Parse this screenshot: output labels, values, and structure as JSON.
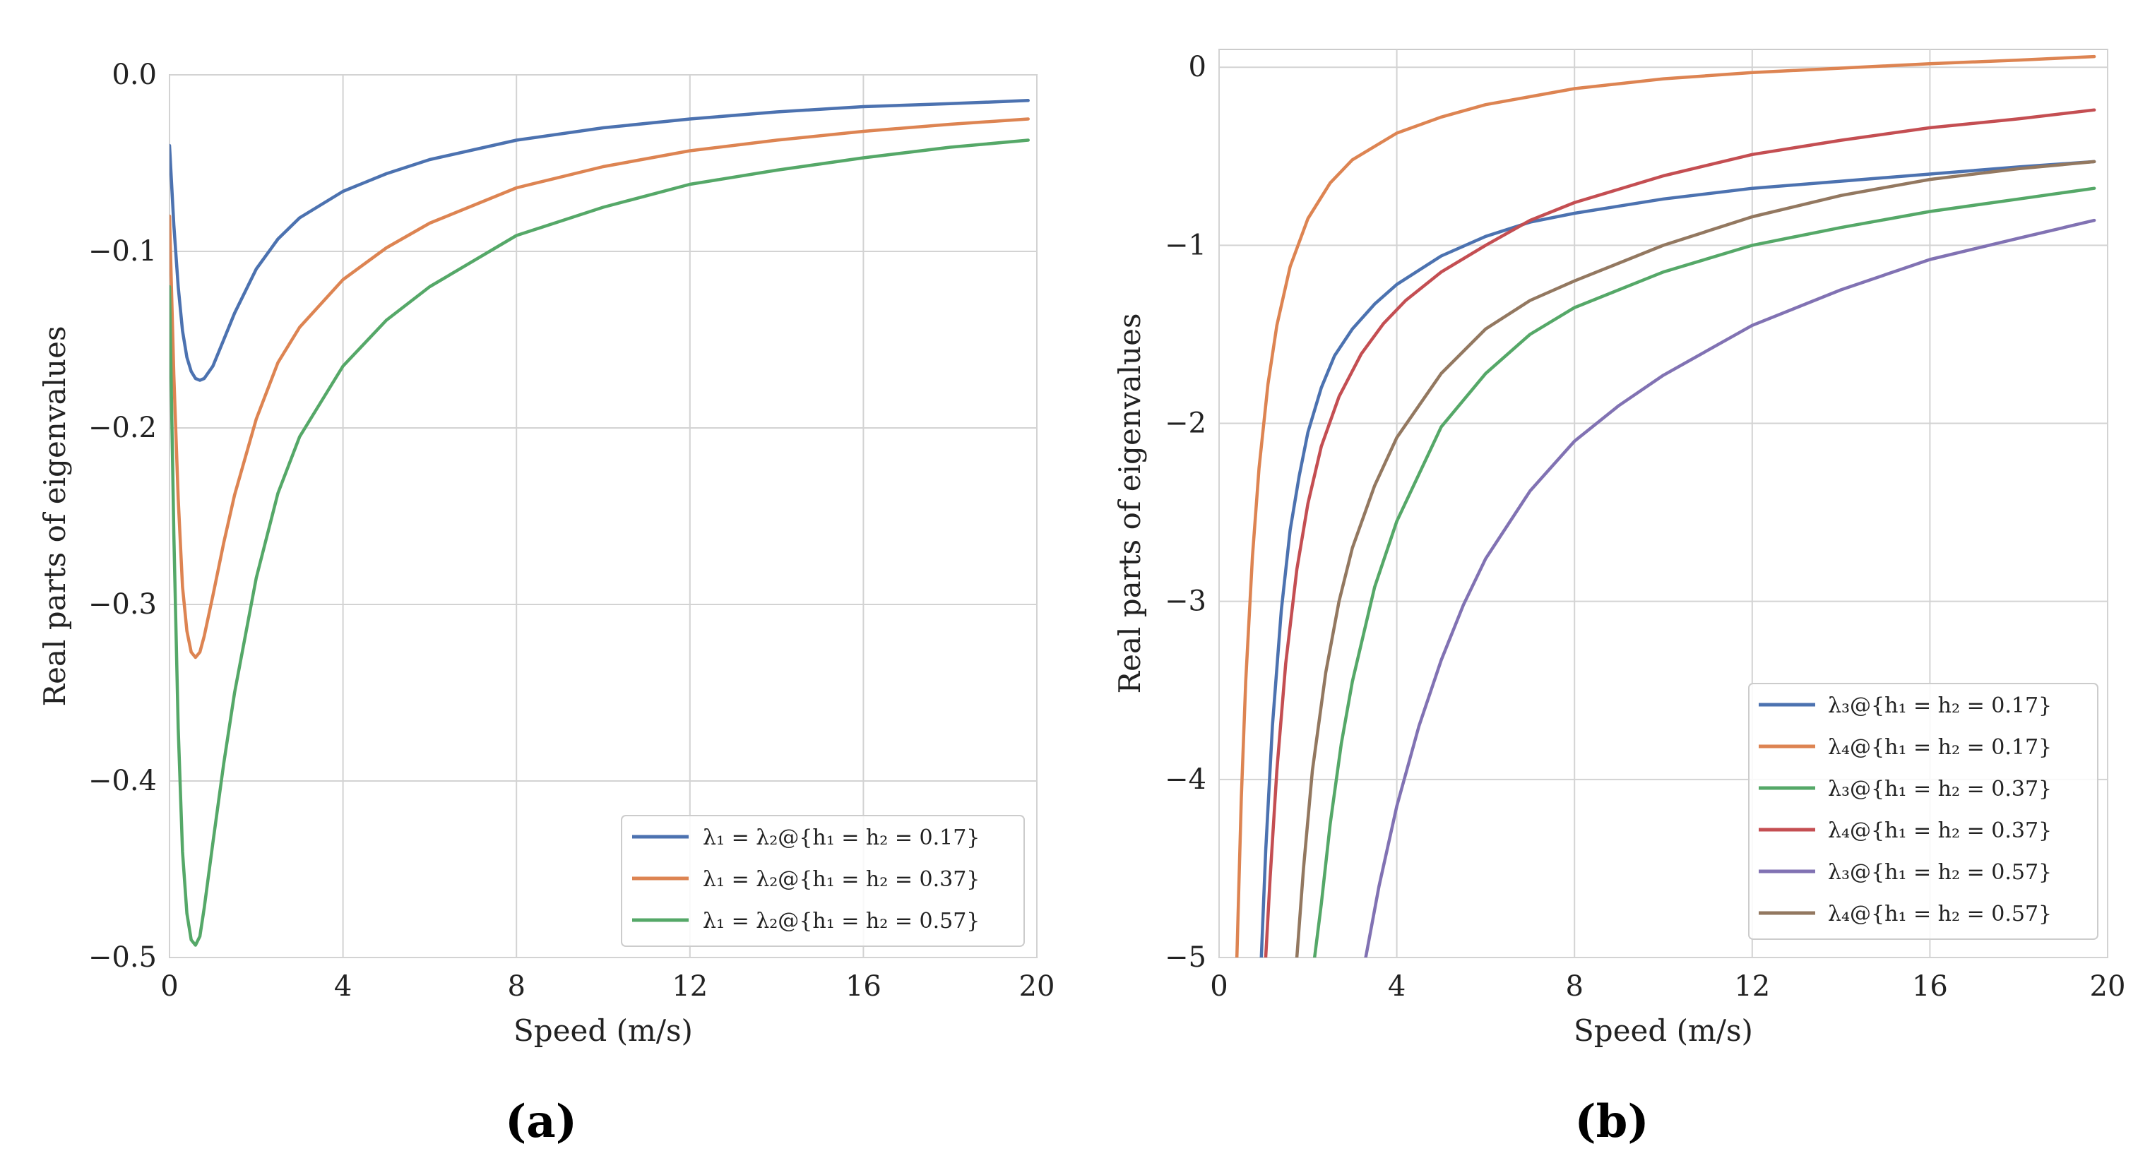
{
  "chart_data": [
    {
      "type": "line",
      "panel_label": "(a)",
      "xlabel": "Speed (m/s)",
      "ylabel": "Real parts of eigenvalues",
      "xlim": [
        0,
        20
      ],
      "ylim": [
        -0.5,
        0.0
      ],
      "xticks": [
        0,
        4,
        8,
        12,
        16,
        20
      ],
      "xtick_labels": [
        "0",
        "4",
        "8",
        "12",
        "16",
        "20"
      ],
      "yticks": [
        0.0,
        -0.1,
        -0.2,
        -0.3,
        -0.4,
        -0.5
      ],
      "ytick_labels": [
        "0.0",
        "−0.1",
        "−0.2",
        "−0.3",
        "−0.4",
        "−0.5"
      ],
      "grid": true,
      "legend_position": "lower-right",
      "series": [
        {
          "name": "λ₁ = λ₂@{h₁ = h₂ = 0.17}",
          "color": "#4c72b0",
          "x": [
            0,
            0.1,
            0.2,
            0.3,
            0.4,
            0.5,
            0.6,
            0.7,
            0.8,
            1.0,
            1.25,
            1.5,
            2,
            2.5,
            3,
            4,
            5,
            6,
            8,
            10,
            12,
            14,
            16,
            18,
            19.8
          ],
          "y": [
            -0.04,
            -0.085,
            -0.12,
            -0.145,
            -0.16,
            -0.168,
            -0.172,
            -0.173,
            -0.172,
            -0.165,
            -0.15,
            -0.135,
            -0.11,
            -0.093,
            -0.081,
            -0.066,
            -0.056,
            -0.048,
            -0.037,
            -0.03,
            -0.025,
            -0.021,
            -0.018,
            -0.0163,
            -0.0145
          ]
        },
        {
          "name": "λ₁ = λ₂@{h₁ = h₂ = 0.37}",
          "color": "#dd8452",
          "x": [
            0,
            0.1,
            0.2,
            0.3,
            0.4,
            0.5,
            0.6,
            0.7,
            0.8,
            1.0,
            1.25,
            1.5,
            2,
            2.5,
            3,
            4,
            5,
            6,
            8,
            10,
            12,
            14,
            16,
            18,
            19.8
          ],
          "y": [
            -0.08,
            -0.17,
            -0.24,
            -0.29,
            -0.315,
            -0.327,
            -0.33,
            -0.327,
            -0.318,
            -0.295,
            -0.265,
            -0.238,
            -0.195,
            -0.163,
            -0.143,
            -0.116,
            -0.098,
            -0.084,
            -0.064,
            -0.052,
            -0.043,
            -0.037,
            -0.032,
            -0.028,
            -0.025
          ]
        },
        {
          "name": "λ₁ = λ₂@{h₁ = h₂ = 0.57}",
          "color": "#55a868",
          "x": [
            0,
            0.1,
            0.2,
            0.3,
            0.4,
            0.5,
            0.6,
            0.7,
            0.8,
            1.0,
            1.25,
            1.5,
            2,
            2.5,
            3,
            4,
            5,
            6,
            8,
            10,
            12,
            14,
            16,
            18,
            19.8
          ],
          "y": [
            -0.12,
            -0.26,
            -0.37,
            -0.44,
            -0.475,
            -0.49,
            -0.493,
            -0.488,
            -0.472,
            -0.435,
            -0.39,
            -0.35,
            -0.285,
            -0.237,
            -0.205,
            -0.165,
            -0.139,
            -0.12,
            -0.091,
            -0.075,
            -0.062,
            -0.054,
            -0.047,
            -0.041,
            -0.037
          ]
        }
      ]
    },
    {
      "type": "line",
      "panel_label": "(b)",
      "xlabel": "Speed (m/s)",
      "ylabel": "Real parts of eigenvalues",
      "xlim": [
        0,
        20
      ],
      "ylim": [
        -5,
        0.1
      ],
      "xticks": [
        0,
        4,
        8,
        12,
        16,
        20
      ],
      "xtick_labels": [
        "0",
        "4",
        "8",
        "12",
        "16",
        "20"
      ],
      "yticks": [
        0,
        -1,
        -2,
        -3,
        -4,
        -5
      ],
      "ytick_labels": [
        "0",
        "−1",
        "−2",
        "−3",
        "−4",
        "−5"
      ],
      "grid": true,
      "legend_position": "lower-right",
      "series": [
        {
          "name": "λ₃@{h₁ = h₂ = 0.17}",
          "color": "#4c72b0",
          "x": [
            0.95,
            1.05,
            1.2,
            1.4,
            1.6,
            1.8,
            2.0,
            2.3,
            2.6,
            3,
            3.5,
            4,
            5,
            6,
            7,
            8,
            10,
            12,
            14,
            16,
            18,
            19.7
          ],
          "y": [
            -5,
            -4.4,
            -3.7,
            -3.05,
            -2.6,
            -2.3,
            -2.05,
            -1.8,
            -1.62,
            -1.47,
            -1.33,
            -1.22,
            -1.06,
            -0.95,
            -0.87,
            -0.82,
            -0.74,
            -0.68,
            -0.64,
            -0.6,
            -0.56,
            -0.53
          ]
        },
        {
          "name": "λ₄@{h₁ = h₂ = 0.17}",
          "color": "#dd8452",
          "x": [
            0.4,
            0.5,
            0.6,
            0.75,
            0.9,
            1.1,
            1.3,
            1.6,
            2,
            2.5,
            3,
            4,
            5,
            6,
            8,
            10,
            12,
            14,
            16,
            18,
            19.7
          ],
          "y": [
            -5,
            -4.1,
            -3.45,
            -2.75,
            -2.25,
            -1.78,
            -1.45,
            -1.12,
            -0.85,
            -0.65,
            -0.52,
            -0.37,
            -0.28,
            -0.21,
            -0.12,
            -0.065,
            -0.03,
            -0.005,
            0.02,
            0.04,
            0.06
          ]
        },
        {
          "name": "λ₃@{h₁ = h₂ = 0.37}",
          "color": "#55a868",
          "x": [
            2.15,
            2.3,
            2.5,
            2.75,
            3,
            3.5,
            4,
            5,
            6,
            7,
            8,
            10,
            12,
            14,
            16,
            18,
            19.7
          ],
          "y": [
            -5,
            -4.7,
            -4.25,
            -3.8,
            -3.45,
            -2.92,
            -2.55,
            -2.02,
            -1.72,
            -1.5,
            -1.35,
            -1.15,
            -1.0,
            -0.9,
            -0.81,
            -0.74,
            -0.68
          ]
        },
        {
          "name": "λ₄@{h₁ = h₂ = 0.37}",
          "color": "#c44e52",
          "x": [
            1.05,
            1.15,
            1.3,
            1.5,
            1.75,
            2.0,
            2.3,
            2.7,
            3.2,
            3.7,
            4.2,
            5,
            6,
            7,
            8,
            10,
            12,
            14,
            16,
            18,
            19.7
          ],
          "y": [
            -5,
            -4.55,
            -3.95,
            -3.35,
            -2.82,
            -2.45,
            -2.13,
            -1.85,
            -1.61,
            -1.44,
            -1.31,
            -1.15,
            -1.0,
            -0.86,
            -0.76,
            -0.61,
            -0.49,
            -0.41,
            -0.34,
            -0.29,
            -0.24
          ]
        },
        {
          "name": "λ₃@{h₁ = h₂ = 0.57}",
          "color": "#8172b3",
          "x": [
            3.3,
            3.6,
            4,
            4.5,
            5,
            5.5,
            6,
            7,
            8,
            9,
            10,
            12,
            14,
            16,
            18,
            19.7
          ],
          "y": [
            -5,
            -4.6,
            -4.15,
            -3.7,
            -3.33,
            -3.02,
            -2.76,
            -2.38,
            -2.1,
            -1.9,
            -1.73,
            -1.45,
            -1.25,
            -1.08,
            -0.96,
            -0.86
          ]
        },
        {
          "name": "λ₄@{h₁ = h₂ = 0.57}",
          "color": "#937860",
          "x": [
            1.75,
            1.9,
            2.1,
            2.4,
            2.7,
            3,
            3.5,
            4,
            5,
            6,
            7,
            8,
            10,
            12,
            14,
            16,
            18,
            19.7
          ],
          "y": [
            -5,
            -4.5,
            -3.95,
            -3.4,
            -3.0,
            -2.7,
            -2.35,
            -2.08,
            -1.72,
            -1.47,
            -1.31,
            -1.2,
            -1.0,
            -0.84,
            -0.72,
            -0.63,
            -0.57,
            -0.53
          ]
        }
      ]
    }
  ]
}
